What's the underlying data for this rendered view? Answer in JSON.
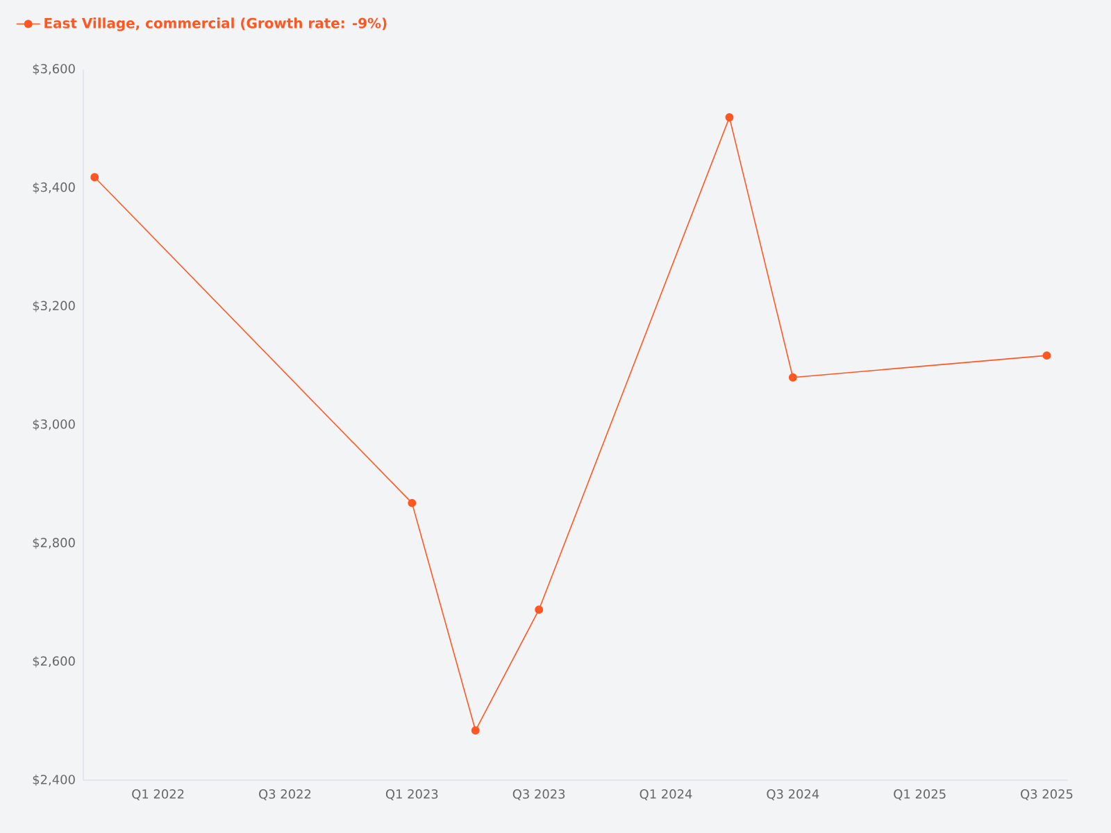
{
  "chart_data": {
    "type": "line",
    "x": [
      "2021-10",
      "2023-01",
      "2023-04",
      "2023-07",
      "2024-04",
      "2024-07",
      "2025-07"
    ],
    "series": [
      {
        "name": "East Village, commercial (Growth rate: -9%)",
        "color": "#ff5722",
        "values": [
          3418,
          2868,
          2484,
          2688,
          3519,
          3080,
          3117
        ]
      }
    ],
    "xlim": [
      "2021-09-15",
      "2025-08-01"
    ],
    "xticks": [
      {
        "value": "2022-01",
        "label": "Q1 2022"
      },
      {
        "value": "2022-07",
        "label": "Q3 2022"
      },
      {
        "value": "2023-01",
        "label": "Q1 2023"
      },
      {
        "value": "2023-07",
        "label": "Q3 2023"
      },
      {
        "value": "2024-01",
        "label": "Q1 2024"
      },
      {
        "value": "2024-07",
        "label": "Q3 2024"
      },
      {
        "value": "2025-01",
        "label": "Q1 2025"
      },
      {
        "value": "2025-07",
        "label": "Q3 2025"
      }
    ],
    "ylim": [
      2400,
      3600
    ],
    "yticks": [
      {
        "value": 2400,
        "label": "$2,400"
      },
      {
        "value": 2600,
        "label": "$2,600"
      },
      {
        "value": 2800,
        "label": "$2,800"
      },
      {
        "value": 3000,
        "label": "$3,000"
      },
      {
        "value": 3200,
        "label": "$3,200"
      },
      {
        "value": 3400,
        "label": "$3,400"
      },
      {
        "value": 3600,
        "label": "$3,600"
      }
    ],
    "grid": false,
    "legend": "top left",
    "marker": "circle",
    "line_style": "solid"
  }
}
